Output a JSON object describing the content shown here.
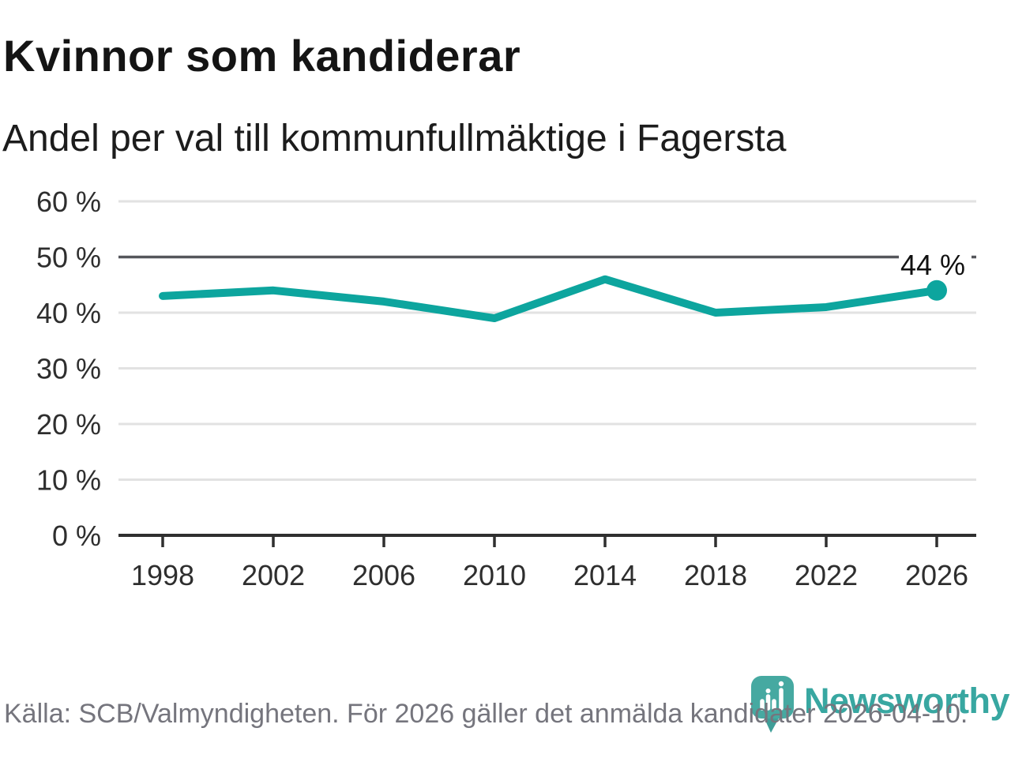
{
  "header": {
    "title": "Kvinnor som kandiderar",
    "subtitle": "Andel per val till kommunfullmäktige i Fagersta"
  },
  "chart_data": {
    "type": "line",
    "title": "Kvinnor som kandiderar",
    "subtitle": "Andel per val till kommunfullmäktige i Fagersta",
    "x": [
      1998,
      2002,
      2006,
      2010,
      2014,
      2018,
      2022,
      2026
    ],
    "xtick_labels": [
      "1998",
      "2002",
      "2006",
      "2010",
      "2014",
      "2018",
      "2022",
      "2026"
    ],
    "values": [
      43,
      44,
      42,
      39,
      46,
      40,
      41,
      44
    ],
    "unit": "%",
    "ylim": [
      0,
      60
    ],
    "yticks": [
      0,
      10,
      20,
      30,
      40,
      50,
      60
    ],
    "highlight_gridline": 50,
    "grid": true,
    "legend": "none",
    "end_label": "44 %"
  },
  "footer": {
    "source": "Källa: SCB/Valmyndigheten. För 2026 gäller det anmälda kandidater 2026-04-10.",
    "brand": "Newsworthy"
  },
  "colors": {
    "line": "#0da59e",
    "grid": "#e2e2e2",
    "grid_highlight": "#55565b",
    "axis": "#2f2f2f",
    "tick_text": "#2e2e2e",
    "title_text": "#141414",
    "muted_text": "#75757d",
    "logo_bubble": "#46a9a1",
    "logo_tail": "#3f9e98",
    "wordmark": "#38a7a1",
    "background": "#ffffff"
  }
}
